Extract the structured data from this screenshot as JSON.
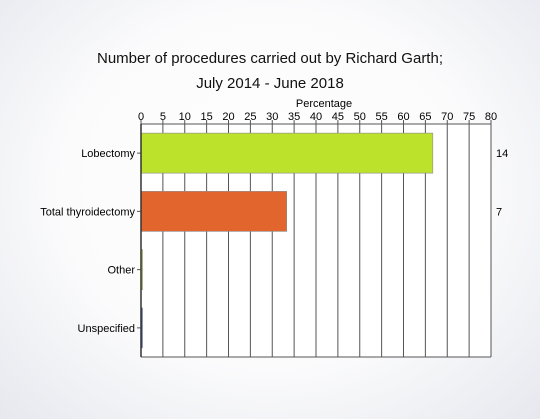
{
  "chart_data": {
    "type": "bar",
    "orientation": "horizontal",
    "title": "Number of procedures carried out by Richard Garth;",
    "subtitle": "July 2014 - June 2018",
    "xlabel": "Percentage",
    "ylabel": "",
    "xlim": [
      0,
      80
    ],
    "xticks": [
      0,
      5,
      10,
      15,
      20,
      25,
      30,
      35,
      40,
      45,
      50,
      55,
      60,
      65,
      70,
      75,
      80
    ],
    "grid": true,
    "legend": "none",
    "categories": [
      "Lobectomy",
      "Total thyroidectomy",
      "Other",
      "Unspecified"
    ],
    "values": [
      66.7,
      33.3,
      0.3,
      0.3
    ],
    "counts": [
      "14",
      "7",
      "",
      ""
    ],
    "colors": [
      "#bde22c",
      "#e2652d",
      "#bde22c",
      "#3a5db8"
    ]
  }
}
